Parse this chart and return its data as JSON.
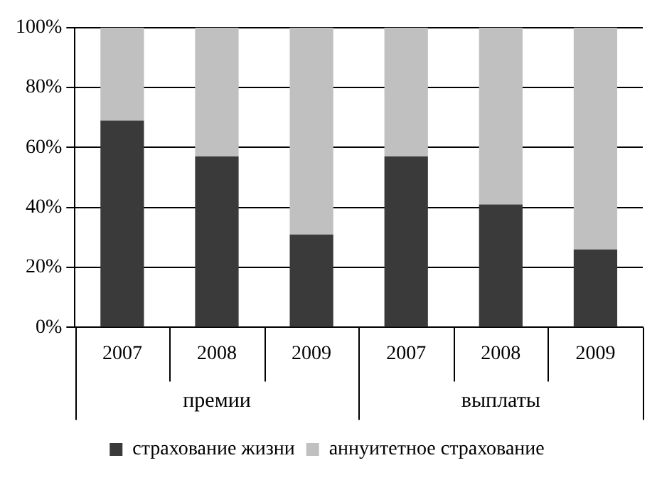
{
  "chart_data": {
    "type": "bar",
    "stacked": true,
    "categories": [
      "2007",
      "2008",
      "2009",
      "2007",
      "2008",
      "2009"
    ],
    "series": [
      {
        "name": "страхование жизни",
        "color": "#3a3a3a",
        "values": [
          69,
          57,
          31,
          57,
          41,
          26
        ]
      },
      {
        "name": "аннуитетное страхование",
        "color": "#c0c0c0",
        "values": [
          31,
          43,
          69,
          43,
          59,
          74
        ]
      }
    ],
    "ylim": [
      0,
      100
    ],
    "yticks": [
      {
        "value": 0,
        "label": "0%"
      },
      {
        "value": 20,
        "label": "20%"
      },
      {
        "value": 40,
        "label": "40%"
      },
      {
        "value": 60,
        "label": "60%"
      },
      {
        "value": 80,
        "label": "80%"
      },
      {
        "value": 100,
        "label": "100%"
      }
    ],
    "grid": "y",
    "legend": "bottom",
    "annotations": [
      "премии",
      "выплаты"
    ]
  }
}
